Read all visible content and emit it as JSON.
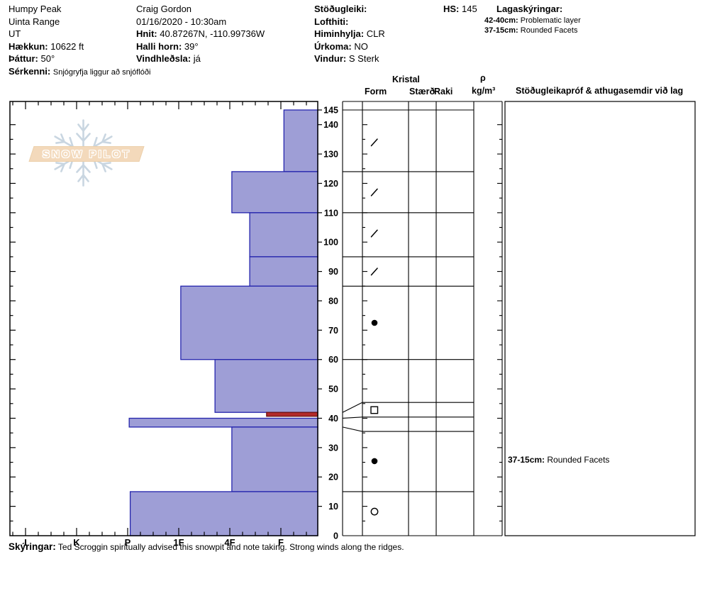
{
  "site": {
    "name": "Humpy Peak",
    "range": "Uinta Range",
    "state": "UT",
    "elevation": {
      "label": "Hækkun:",
      "value": "10622 ft"
    },
    "aspect": {
      "label": "Þáttur:",
      "value": "50°"
    },
    "special": {
      "label": "Sérkenni:",
      "value": "Snjógryfja liggur að snjóflóði"
    }
  },
  "observer": {
    "name": "Craig Gordon",
    "datetime": "01/16/2020 - 10:30am",
    "coords": {
      "label": "Hnit:",
      "value": "40.87267N, -110.99736W"
    },
    "slope": {
      "label": "Halli horn:",
      "value": "39°"
    },
    "windloading": {
      "label": "Vindhleðsla:",
      "value": "já"
    }
  },
  "conditions": {
    "stability": {
      "label": "Stöðugleiki:",
      "value": ""
    },
    "air_temp": {
      "label": "Lofthiti:",
      "value": ""
    },
    "sky": {
      "label": "Himinhylja:",
      "value": "CLR"
    },
    "precip": {
      "label": "Úrkoma:",
      "value": "NO"
    },
    "wind": {
      "label": "Vindur:",
      "value": "S Sterk"
    }
  },
  "hs": {
    "label": "HS:",
    "value": "145"
  },
  "layer_notes": {
    "label": "Lagaskýringar:",
    "items": [
      {
        "range": "42-40cm:",
        "text": "Problematic layer"
      },
      {
        "range": "37-15cm:",
        "text": "Rounded Facets"
      }
    ]
  },
  "logo": {
    "text": "SNOW PILOT"
  },
  "table": {
    "kristal_header": "Kristal",
    "form_header": "Form",
    "size_header": "Stærð",
    "wetness_header": "Raki",
    "density_symbol": "ρ",
    "density_units": "kg/m³",
    "comments_header": "Stöðugleikapróf & athugasemdir við lag",
    "comments": [
      {
        "range": "37-15cm:",
        "text": "Rounded Facets",
        "depth_cm": 25
      }
    ]
  },
  "footer": {
    "label": "Skýringar:",
    "text": "Ted Scroggin spiritually advised this snowpit and note taking. Strong winds along the ridges."
  },
  "chart_data": {
    "type": "bar",
    "orientation": "horizontal",
    "title": "Snow hardness profile vs depth",
    "depth_unit": "cm",
    "total_height_cm": 145,
    "depth_axis": {
      "min": 0,
      "max": 145,
      "labeled_ticks": [
        145,
        140,
        130,
        120,
        110,
        100,
        90,
        80,
        70,
        60,
        50,
        40,
        30,
        20,
        10,
        0
      ],
      "minor_tick_step_cm": 5
    },
    "hardness_axis": {
      "categories": [
        "I",
        "K",
        "P",
        "1F",
        "4F",
        "F"
      ],
      "direction": "hardest-left-softest-right"
    },
    "layers": [
      {
        "top_cm": 145,
        "bottom_cm": 124,
        "hardness": "F",
        "hardness_value": -0.06,
        "grain_form": "slash",
        "problem": false
      },
      {
        "top_cm": 124,
        "bottom_cm": 110,
        "hardness": "4F",
        "hardness_value": 0.96,
        "grain_form": "slash",
        "problem": false
      },
      {
        "top_cm": 110,
        "bottom_cm": 95,
        "hardness": "4F-F",
        "hardness_value": 0.61,
        "grain_form": "slash",
        "problem": false
      },
      {
        "top_cm": 95,
        "bottom_cm": 85,
        "hardness": "4F-F",
        "hardness_value": 0.61,
        "grain_form": "slash",
        "problem": false
      },
      {
        "top_cm": 85,
        "bottom_cm": 60,
        "hardness": "1F",
        "hardness_value": 1.96,
        "grain_form": "dot",
        "problem": false
      },
      {
        "top_cm": 60,
        "bottom_cm": 42,
        "hardness": "4F+",
        "hardness_value": 1.29,
        "grain_form": "",
        "problem": false
      },
      {
        "top_cm": 42,
        "bottom_cm": 40,
        "hardness": "F+",
        "hardness_value": 0.28,
        "grain_form": "square_open",
        "problem": true
      },
      {
        "top_cm": 40,
        "bottom_cm": 37,
        "hardness": "P",
        "hardness_value": 2.97,
        "grain_form": "",
        "problem": false
      },
      {
        "top_cm": 37,
        "bottom_cm": 15,
        "hardness": "4F",
        "hardness_value": 0.96,
        "grain_form": "dot",
        "problem": false
      },
      {
        "top_cm": 15,
        "bottom_cm": 0,
        "hardness": "P",
        "hardness_value": 2.95,
        "grain_form": "circle_open",
        "problem": false
      }
    ],
    "layer_boundaries_cm": [
      145,
      124,
      110,
      95,
      85,
      60,
      15
    ],
    "expanded_layer_rows": {
      "leader_depths_cm": [
        42,
        40,
        37
      ],
      "row_boundary_depths_cm": [
        45.4,
        40.4,
        35.5
      ]
    },
    "grain_symbols": [
      {
        "symbol": "slash",
        "depth_cm": 134
      },
      {
        "symbol": "slash",
        "depth_cm": 117
      },
      {
        "symbol": "slash",
        "depth_cm": 103
      },
      {
        "symbol": "slash",
        "depth_cm": 90
      },
      {
        "symbol": "dot",
        "depth_cm": 72.5
      },
      {
        "symbol": "square_open",
        "depth_cm": 42.8
      },
      {
        "symbol": "dot",
        "depth_cm": 25.4
      },
      {
        "symbol": "circle_open",
        "depth_cm": 8.2
      }
    ],
    "colors": {
      "bar_fill": "#9e9ed6",
      "bar_border": "#2525ad",
      "problem_fill": "#b22a2a",
      "problem_border": "#6e1010"
    }
  }
}
